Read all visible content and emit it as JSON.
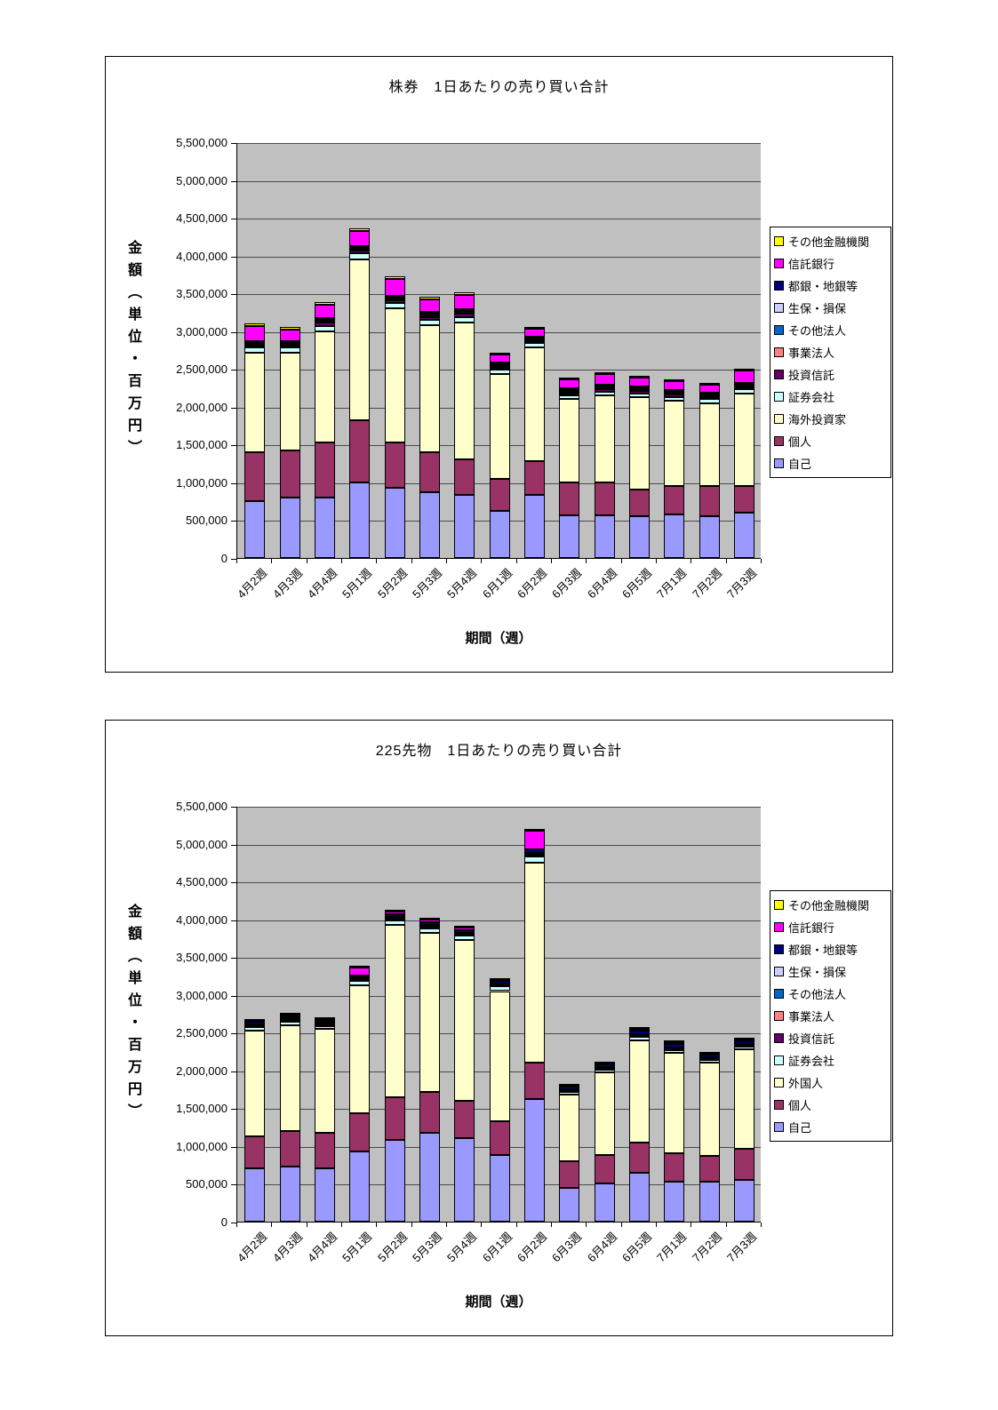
{
  "chart_data": [
    {
      "type": "bar",
      "stacked": true,
      "title": "株券　1日あたりの売り買い合計",
      "xlabel": "期間（週）",
      "ylabel": "金額（単位・百万円）",
      "ylim": [
        0,
        5500000
      ],
      "grid": true,
      "plot_bg": "#C0C0C0",
      "legend_position": "right",
      "y_ticks": [
        "0",
        "500,000",
        "1,000,000",
        "1,500,000",
        "2,000,000",
        "2,500,000",
        "3,000,000",
        "3,500,000",
        "4,000,000",
        "4,500,000",
        "5,000,000",
        "5,500,000"
      ],
      "categories": [
        "4月2週",
        "4月3週",
        "4月4週",
        "5月1週",
        "5月2週",
        "5月3週",
        "5月4週",
        "6月1週",
        "6月2週",
        "6月3週",
        "6月4週",
        "6月5週",
        "7月1週",
        "7月2週",
        "7月3週"
      ],
      "series": [
        {
          "name": "自己",
          "color": "#9999FF",
          "values": [
            750000,
            800000,
            800000,
            1000000,
            930000,
            870000,
            830000,
            620000,
            830000,
            570000,
            560000,
            550000,
            580000,
            550000,
            600000
          ]
        },
        {
          "name": "個人",
          "color": "#993366",
          "values": [
            650000,
            620000,
            730000,
            820000,
            600000,
            530000,
            470000,
            430000,
            450000,
            430000,
            440000,
            350000,
            370000,
            400000,
            350000
          ]
        },
        {
          "name": "海外投資家",
          "color": "#FFFFCC",
          "values": [
            1320000,
            1300000,
            1470000,
            2130000,
            1770000,
            1680000,
            1820000,
            1380000,
            1500000,
            1100000,
            1150000,
            1230000,
            1130000,
            1100000,
            1230000
          ]
        },
        {
          "name": "証券会社",
          "color": "#CCFFFF",
          "values": [
            60000,
            60000,
            70000,
            80000,
            70000,
            70000,
            70000,
            60000,
            60000,
            50000,
            50000,
            50000,
            50000,
            50000,
            50000
          ]
        },
        {
          "name": "投資信託",
          "color": "#660066",
          "values": [
            30000,
            30000,
            40000,
            40000,
            40000,
            40000,
            40000,
            30000,
            30000,
            30000,
            30000,
            30000,
            30000,
            30000,
            30000
          ]
        },
        {
          "name": "事業法人",
          "color": "#FF8080",
          "values": [
            15000,
            15000,
            15000,
            15000,
            15000,
            15000,
            15000,
            15000,
            15000,
            15000,
            15000,
            15000,
            15000,
            15000,
            15000
          ]
        },
        {
          "name": "その他法人",
          "color": "#0066CC",
          "values": [
            10000,
            10000,
            10000,
            10000,
            10000,
            10000,
            10000,
            10000,
            10000,
            10000,
            10000,
            10000,
            10000,
            10000,
            10000
          ]
        },
        {
          "name": "生保・損保",
          "color": "#CCCCFF",
          "values": [
            20000,
            20000,
            20000,
            20000,
            20000,
            20000,
            20000,
            20000,
            20000,
            20000,
            20000,
            20000,
            20000,
            20000,
            20000
          ]
        },
        {
          "name": "都銀・地銀等",
          "color": "#000080",
          "values": [
            15000,
            15000,
            15000,
            15000,
            15000,
            15000,
            15000,
            15000,
            15000,
            15000,
            15000,
            15000,
            15000,
            15000,
            15000
          ]
        },
        {
          "name": "信託銀行",
          "color": "#FF00FF",
          "values": [
            200000,
            150000,
            180000,
            200000,
            220000,
            170000,
            190000,
            110000,
            100000,
            120000,
            140000,
            110000,
            120000,
            100000,
            160000
          ]
        },
        {
          "name": "その他金融機関",
          "color": "#FFFF00",
          "values": [
            30000,
            30000,
            30000,
            30000,
            30000,
            30000,
            30000,
            20000,
            20000,
            20000,
            20000,
            20000,
            20000,
            20000,
            20000
          ]
        }
      ]
    },
    {
      "type": "bar",
      "stacked": true,
      "title": "225先物　1日あたりの売り買い合計",
      "xlabel": "期間（週）",
      "ylabel": "金額（単位・百万円）",
      "ylim": [
        0,
        5500000
      ],
      "grid": true,
      "plot_bg": "#C0C0C0",
      "legend_position": "right",
      "y_ticks": [
        "0",
        "500,000",
        "1,000,000",
        "1,500,000",
        "2,000,000",
        "2,500,000",
        "3,000,000",
        "3,500,000",
        "4,000,000",
        "4,500,000",
        "5,000,000",
        "5,500,000"
      ],
      "categories": [
        "4月2週",
        "4月3週",
        "4月4週",
        "5月1週",
        "5月2週",
        "5月3週",
        "5月4週",
        "6月1週",
        "6月2週",
        "6月3週",
        "6月4週",
        "6月5週",
        "7月1週",
        "7月2週",
        "7月3週"
      ],
      "series": [
        {
          "name": "自己",
          "color": "#9999FF",
          "values": [
            700000,
            730000,
            700000,
            930000,
            1080000,
            1180000,
            1100000,
            880000,
            1620000,
            450000,
            500000,
            650000,
            530000,
            530000,
            550000
          ]
        },
        {
          "name": "個人",
          "color": "#993366",
          "values": [
            430000,
            470000,
            480000,
            500000,
            570000,
            540000,
            500000,
            450000,
            480000,
            350000,
            380000,
            400000,
            370000,
            340000,
            410000
          ]
        },
        {
          "name": "外国人",
          "color": "#FFFFCC",
          "values": [
            1400000,
            1400000,
            1370000,
            1700000,
            2280000,
            2100000,
            2120000,
            1720000,
            2650000,
            880000,
            1090000,
            1350000,
            1330000,
            1230000,
            1320000
          ]
        },
        {
          "name": "証券会社",
          "color": "#CCFFFF",
          "values": [
            40000,
            50000,
            40000,
            60000,
            60000,
            60000,
            60000,
            60000,
            80000,
            40000,
            40000,
            50000,
            40000,
            40000,
            40000
          ]
        },
        {
          "name": "投資信託",
          "color": "#660066",
          "values": [
            10000,
            10000,
            10000,
            10000,
            10000,
            10000,
            10000,
            10000,
            10000,
            10000,
            10000,
            10000,
            10000,
            10000,
            10000
          ]
        },
        {
          "name": "事業法人",
          "color": "#FF8080",
          "values": [
            10000,
            10000,
            10000,
            10000,
            10000,
            10000,
            10000,
            10000,
            10000,
            10000,
            10000,
            10000,
            10000,
            10000,
            10000
          ]
        },
        {
          "name": "その他法人",
          "color": "#0066CC",
          "values": [
            5000,
            5000,
            5000,
            5000,
            5000,
            5000,
            5000,
            5000,
            5000,
            5000,
            5000,
            5000,
            5000,
            5000,
            5000
          ]
        },
        {
          "name": "生保・損保",
          "color": "#CCCCFF",
          "values": [
            15000,
            15000,
            15000,
            15000,
            15000,
            15000,
            15000,
            15000,
            20000,
            10000,
            10000,
            10000,
            10000,
            10000,
            10000
          ]
        },
        {
          "name": "都銀・地銀等",
          "color": "#000080",
          "values": [
            30000,
            30000,
            30000,
            30000,
            40000,
            40000,
            40000,
            30000,
            50000,
            30000,
            30000,
            40000,
            40000,
            30000,
            30000
          ]
        },
        {
          "name": "信託銀行",
          "color": "#FF00FF",
          "values": [
            15000,
            15000,
            15000,
            100000,
            30000,
            40000,
            30000,
            20000,
            250000,
            15000,
            15000,
            30000,
            30000,
            15000,
            20000
          ]
        },
        {
          "name": "その他金融機関",
          "color": "#FFFF00",
          "values": [
            5000,
            5000,
            5000,
            5000,
            5000,
            5000,
            5000,
            5000,
            10000,
            5000,
            5000,
            5000,
            5000,
            5000,
            5000
          ]
        }
      ]
    }
  ]
}
